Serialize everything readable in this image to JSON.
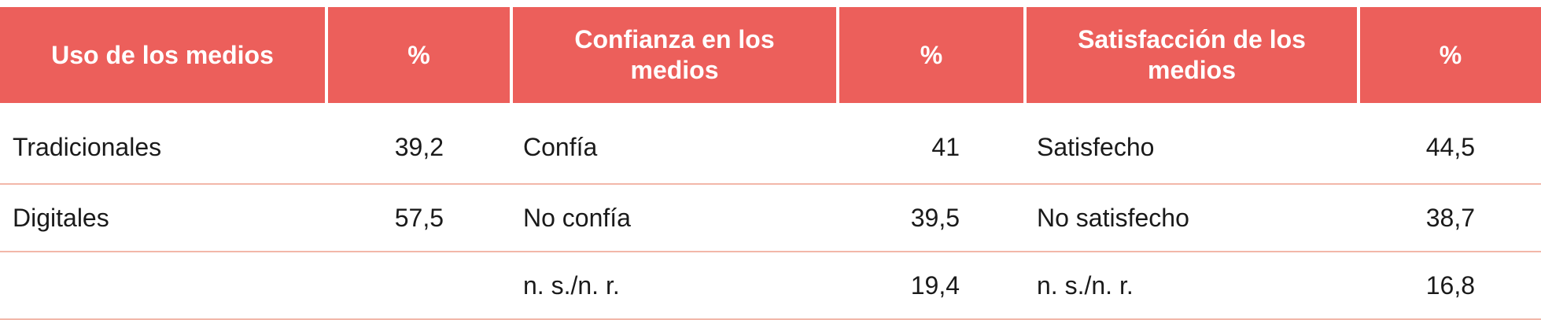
{
  "table": {
    "headers": [
      "Uso de los medios",
      "%",
      "Confianza en los medios",
      "%",
      "Satisfacción de los medios",
      "%"
    ],
    "rows": [
      [
        "Tradicionales",
        "39,2",
        "Confía",
        "41",
        "Satisfecho",
        "44,5"
      ],
      [
        "Digitales",
        "57,5",
        "No confía",
        "39,5",
        "No satisfecho",
        "38,7"
      ],
      [
        "",
        "",
        "n. s./n. r.",
        "19,4",
        "n. s./n. r.",
        "16,8"
      ]
    ]
  },
  "colors": {
    "header_background": "#ec5f5b",
    "header_text": "#ffffff",
    "row_divider": "#f2b7a9",
    "body_text": "#1a1a1a"
  }
}
